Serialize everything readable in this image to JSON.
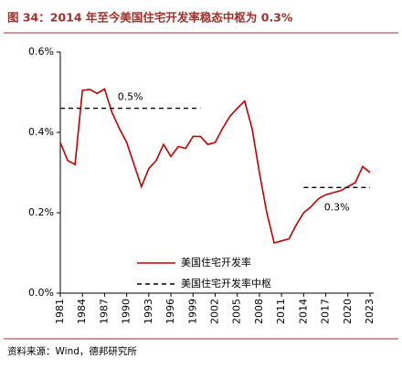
{
  "chart_data": {
    "type": "line",
    "title": "图 34：2014 年至今美国住宅开发率稳态中枢为 0.3%",
    "source": "资料来源：Wind，德邦研究所",
    "x": [
      1981,
      1982,
      1983,
      1984,
      1985,
      1986,
      1987,
      1988,
      1989,
      1990,
      1991,
      1992,
      1993,
      1994,
      1995,
      1996,
      1997,
      1998,
      1999,
      2000,
      2001,
      2002,
      2003,
      2004,
      2005,
      2006,
      2007,
      2008,
      2009,
      2010,
      2011,
      2012,
      2013,
      2014,
      2015,
      2016,
      2017,
      2018,
      2019,
      2020,
      2021,
      2022,
      2023
    ],
    "series": [
      {
        "name": "美国住宅开发率",
        "color": "#c00000",
        "values": [
          0.375,
          0.33,
          0.32,
          0.505,
          0.507,
          0.497,
          0.508,
          0.45,
          0.41,
          0.375,
          0.32,
          0.265,
          0.31,
          0.33,
          0.37,
          0.34,
          0.365,
          0.36,
          0.39,
          0.39,
          0.37,
          0.375,
          0.41,
          0.44,
          0.46,
          0.478,
          0.41,
          0.3,
          0.2,
          0.125,
          0.13,
          0.135,
          0.17,
          0.2,
          0.215,
          0.235,
          0.245,
          0.25,
          0.255,
          0.265,
          0.275,
          0.315,
          0.3
        ]
      },
      {
        "name": "美国住宅开发率中枢",
        "color": "#000000",
        "dashed": true,
        "segments": [
          {
            "x": [
              1981,
              2000
            ],
            "value": 0.46,
            "label": "0.5%"
          },
          {
            "x": [
              2014,
              2023
            ],
            "value": 0.263,
            "label": "0.3%"
          }
        ]
      }
    ],
    "xlim": [
      1981,
      2023
    ],
    "xticks": [
      1981,
      1984,
      1987,
      1990,
      1993,
      1996,
      1999,
      2002,
      2005,
      2008,
      2011,
      2014,
      2017,
      2020,
      2023
    ],
    "ylim": [
      0,
      0.6
    ],
    "yticks": [
      {
        "value": 0,
        "label": "0.0%"
      },
      {
        "value": 0.2,
        "label": "0.2%"
      },
      {
        "value": 0.4,
        "label": "0.4%"
      },
      {
        "value": 0.6,
        "label": "0.6%"
      }
    ],
    "grid": false
  }
}
